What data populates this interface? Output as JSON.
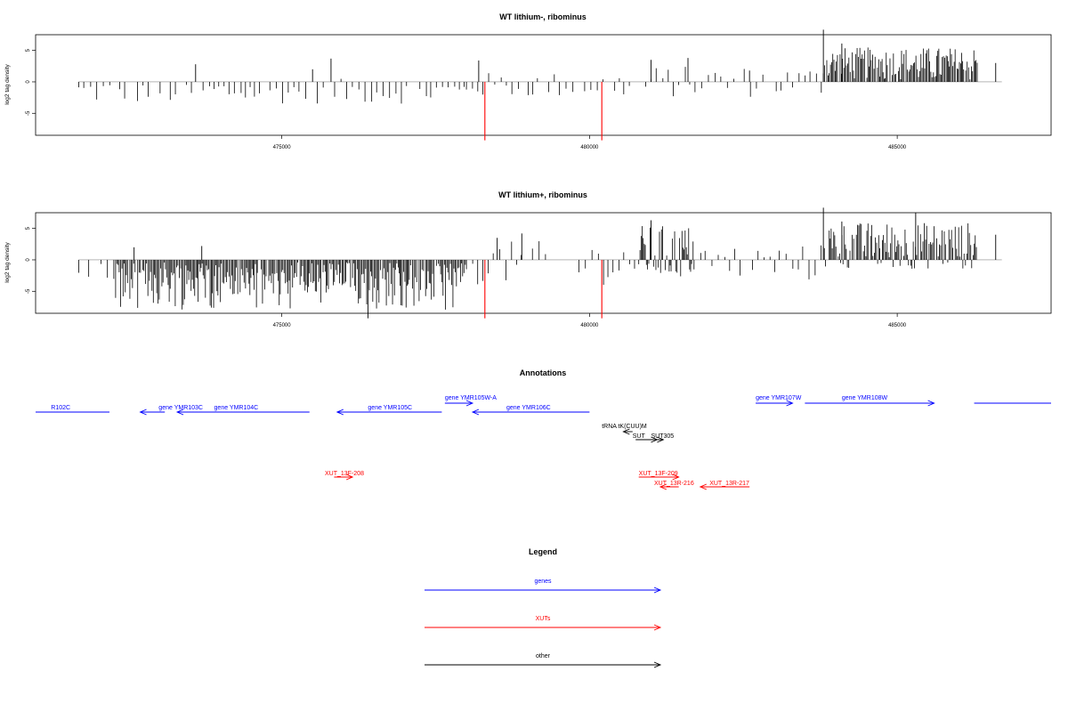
{
  "chart_data": [
    {
      "type": "bar",
      "title": "WT lithium-, ribominus",
      "xlabel": "",
      "ylabel": "log2 tag density",
      "xlim": [
        471000,
        487500
      ],
      "ylim": [
        -8.5,
        7.5
      ],
      "x_ticks": [
        {
          "value": 475000,
          "label": "475000"
        },
        {
          "value": 480000,
          "label": "480000"
        },
        {
          "value": 485000,
          "label": "485000"
        }
      ],
      "y_ticks": [
        {
          "value": 5,
          "label": "5"
        },
        {
          "value": 0,
          "label": "0"
        },
        {
          "value": -5,
          "label": "-5"
        }
      ],
      "baseline_range": [
        471700,
        486700
      ],
      "highlight": {
        "color": "#ff0000",
        "x": [
          478300,
          480200
        ],
        "values": [
          -9.3,
          -9.3
        ]
      },
      "bar_color": "#000000",
      "notable_values": [
        {
          "x": 473600,
          "value": 2.8
        },
        {
          "x": 475500,
          "value": 2.0
        },
        {
          "x": 475800,
          "value": 3.7
        },
        {
          "x": 478200,
          "value": 3.4
        },
        {
          "x": 481000,
          "value": 3.5
        },
        {
          "x": 481600,
          "value": 3.8
        },
        {
          "x": 482600,
          "value": 1.8
        },
        {
          "x": 483800,
          "value": 8.3
        },
        {
          "x": 484100,
          "value": 6.1
        },
        {
          "x": 486600,
          "value": 3.0
        }
      ],
      "density_profile": [
        {
          "from": 471700,
          "to": 478000,
          "density": "sparse",
          "min": -3.5,
          "max": 0.5
        },
        {
          "from": 478000,
          "to": 481000,
          "density": "sparse",
          "min": -2.5,
          "max": 1.5
        },
        {
          "from": 481000,
          "to": 483800,
          "density": "sparse",
          "min": -2.5,
          "max": 2.5
        },
        {
          "from": 483800,
          "to": 486300,
          "density": "dense",
          "min": 0,
          "max": 5.5
        }
      ]
    },
    {
      "type": "bar",
      "title": "WT lithium+, ribominus",
      "xlabel": "",
      "ylabel": "log2 tag density",
      "xlim": [
        471000,
        487500
      ],
      "ylim": [
        -8.5,
        7.5
      ],
      "x_ticks": [
        {
          "value": 475000,
          "label": "475000"
        },
        {
          "value": 480000,
          "label": "480000"
        },
        {
          "value": 485000,
          "label": "485000"
        }
      ],
      "y_ticks": [
        {
          "value": 5,
          "label": "5"
        },
        {
          "value": 0,
          "label": "0"
        },
        {
          "value": -5,
          "label": "-5"
        }
      ],
      "baseline_range": [
        471700,
        486700
      ],
      "highlight": {
        "color": "#ff0000",
        "x": [
          478300,
          480200
        ],
        "values": [
          -9.3,
          -9.3
        ]
      },
      "bar_color": "#000000",
      "notable_values": [
        {
          "x": 472600,
          "value": 2.0
        },
        {
          "x": 473700,
          "value": 2.2
        },
        {
          "x": 476400,
          "value": -9.3
        },
        {
          "x": 478500,
          "value": 3.5
        },
        {
          "x": 478900,
          "value": 4.2
        },
        {
          "x": 481000,
          "value": 6.3
        },
        {
          "x": 483800,
          "value": 8.3
        },
        {
          "x": 484100,
          "value": 6.1
        },
        {
          "x": 485300,
          "value": 7.5
        },
        {
          "x": 486600,
          "value": 4.0
        }
      ],
      "density_profile": [
        {
          "from": 471700,
          "to": 472300,
          "density": "sparse",
          "min": -3.5,
          "max": 1.0
        },
        {
          "from": 472300,
          "to": 478000,
          "density": "dense",
          "min": -8.0,
          "max": 0
        },
        {
          "from": 478000,
          "to": 480800,
          "density": "sparse",
          "min": -4.0,
          "max": 3.0
        },
        {
          "from": 480800,
          "to": 481700,
          "density": "dense",
          "min": -3.0,
          "max": 5.5
        },
        {
          "from": 481700,
          "to": 483800,
          "density": "sparse",
          "min": -3.5,
          "max": 2.5
        },
        {
          "from": 483800,
          "to": 486300,
          "density": "dense",
          "min": -1.5,
          "max": 6.0
        }
      ]
    },
    {
      "type": "table",
      "title": "Annotations",
      "xlim": [
        471000,
        487500
      ],
      "features": [
        {
          "label": "R102C",
          "kind": "gene",
          "start": 471000,
          "end": 472200,
          "strand": "",
          "label_x": 471250,
          "row": 1
        },
        {
          "label": "gene YMR103C",
          "kind": "gene",
          "start": 472700,
          "end": 473100,
          "strand": "-",
          "label_x": 473000,
          "row": 1
        },
        {
          "label": "gene YMR104C",
          "kind": "gene",
          "start": 473300,
          "end": 475450,
          "strand": "-",
          "label_x": 473900,
          "row": 1
        },
        {
          "label": "gene YMR105C",
          "kind": "gene",
          "start": 475900,
          "end": 477600,
          "strand": "-",
          "label_x": 476400,
          "row": 1
        },
        {
          "label": "gene YMR105W-A",
          "kind": "gene",
          "start": 477650,
          "end": 478100,
          "strand": "+",
          "label_x": 477650,
          "row": 0
        },
        {
          "label": "gene YMR106C",
          "kind": "gene",
          "start": 478100,
          "end": 480000,
          "strand": "-",
          "label_x": 478650,
          "row": 1
        },
        {
          "label": "gene YMR107W",
          "kind": "gene",
          "start": 482700,
          "end": 483300,
          "strand": "+",
          "label_x": 482700,
          "row": 0
        },
        {
          "label": "gene YMR108W",
          "kind": "gene",
          "start": 483500,
          "end": 485600,
          "strand": "+",
          "label_x": 484100,
          "row": 0
        },
        {
          "label": "",
          "kind": "gene",
          "start": 486250,
          "end": 487500,
          "strand": "",
          "label_x": 486250,
          "row": 0
        },
        {
          "label": "tRNA tK(CUU)M",
          "kind": "other",
          "start": 480550,
          "end": 480700,
          "strand": "-",
          "label_x": 480200,
          "row": 2
        },
        {
          "label": "SUT",
          "kind": "other",
          "start": 480750,
          "end": 481100,
          "strand": "+",
          "label_x": 480700,
          "row": 3
        },
        {
          "label": "SUT305",
          "kind": "other",
          "start": 480950,
          "end": 481200,
          "strand": "+",
          "label_x": 481000,
          "row": 3
        },
        {
          "label": "XUT_13F-208",
          "kind": "XUT",
          "start": 475850,
          "end": 476150,
          "strand": "+",
          "label_x": 475700,
          "row": 4
        },
        {
          "label": "XUT_13F-209",
          "kind": "XUT",
          "start": 480800,
          "end": 481450,
          "strand": "+",
          "label_x": 480800,
          "row": 4
        },
        {
          "label": "XUT_13R-216",
          "kind": "XUT",
          "start": 481150,
          "end": 481450,
          "strand": "-",
          "label_x": 481050,
          "row": 5
        },
        {
          "label": "XUT_13R-217",
          "kind": "XUT",
          "start": 481800,
          "end": 482600,
          "strand": "-",
          "label_x": 481950,
          "row": 5
        }
      ]
    },
    {
      "type": "table",
      "title": "Legend",
      "entries": [
        {
          "label": "genes",
          "color": "#0000ff"
        },
        {
          "label": "XUTs",
          "color": "#ff0000"
        },
        {
          "label": "other",
          "color": "#000000"
        }
      ]
    }
  ]
}
